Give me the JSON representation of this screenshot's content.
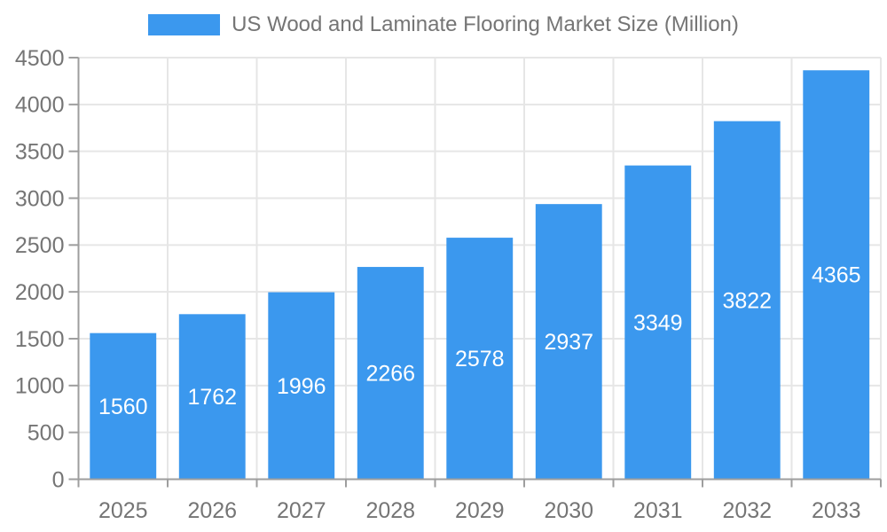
{
  "legend": {
    "label": "US Wood and Laminate Flooring Market Size (Million)"
  },
  "chart_data": {
    "type": "bar",
    "title": "US Wood and Laminate Flooring Market Size (Million)",
    "categories": [
      "2025",
      "2026",
      "2027",
      "2028",
      "2029",
      "2030",
      "2031",
      "2032",
      "2033"
    ],
    "values": [
      1560,
      1762,
      1996,
      2266,
      2578,
      2937,
      3349,
      3822,
      4365
    ],
    "xlabel": "",
    "ylabel": "",
    "ylim": [
      0,
      4500
    ],
    "ytick_step": 500,
    "grid": true,
    "legend_position": "top",
    "bar_color": "#3b98ee",
    "value_label_color": "#ffffff",
    "axis_color": "#9e9e9e",
    "grid_color": "#e6e6e6",
    "text_color": "#757575"
  }
}
